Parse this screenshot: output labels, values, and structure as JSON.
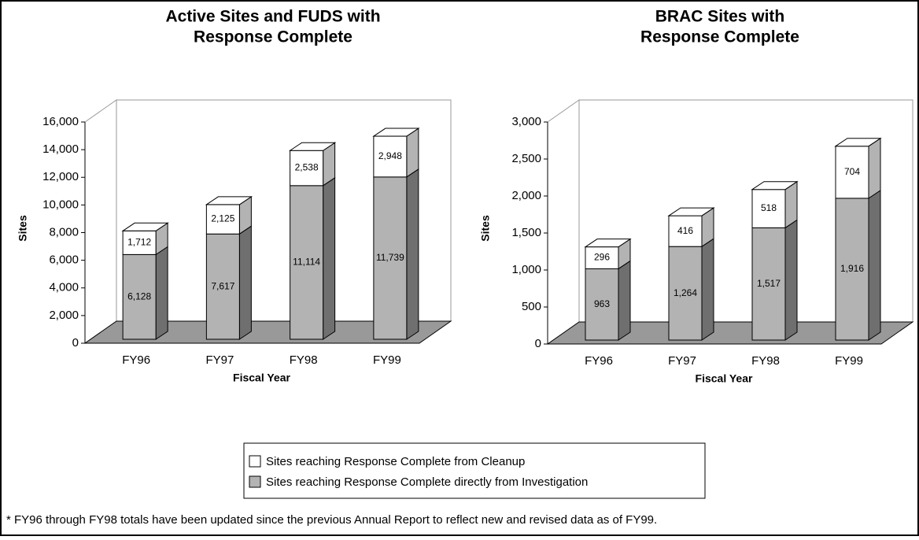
{
  "chart_data": [
    {
      "type": "bar3d_stacked",
      "title": [
        "Active Sites and FUDS with",
        "Response Complete"
      ],
      "y_label": "Sites",
      "x_label": "Fiscal Year",
      "categories": [
        "FY96",
        "FY97",
        "FY98",
        "FY99"
      ],
      "series": [
        {
          "name": "Sites reaching Response Complete directly from Investigation",
          "color": "#b3b3b3",
          "values": [
            6128,
            7617,
            11114,
            11739
          ],
          "value_labels": [
            "6,128",
            "7,617",
            "11,114",
            "11,739"
          ]
        },
        {
          "name": "Sites reaching Response Complete from Cleanup",
          "color": "#ffffff",
          "values": [
            1712,
            2125,
            2538,
            2948
          ],
          "value_labels": [
            "1,712",
            "2,125",
            "2,538",
            "2,948"
          ]
        }
      ],
      "ylim": [
        0,
        16000
      ],
      "yticks": [
        {
          "value": 0,
          "label": "0"
        },
        {
          "value": 2000,
          "label": "2,000"
        },
        {
          "value": 4000,
          "label": "4,000"
        },
        {
          "value": 6000,
          "label": "6,000"
        },
        {
          "value": 8000,
          "label": "8,000"
        },
        {
          "value": 10000,
          "label": "10,000"
        },
        {
          "value": 12000,
          "label": "12,000"
        },
        {
          "value": 14000,
          "label": "14,000"
        },
        {
          "value": 16000,
          "label": "16,000"
        }
      ]
    },
    {
      "type": "bar3d_stacked",
      "title": [
        "BRAC Sites with",
        "Response Complete"
      ],
      "y_label": "Sites",
      "x_label": "Fiscal Year",
      "categories": [
        "FY96",
        "FY97",
        "FY98",
        "FY99"
      ],
      "series": [
        {
          "color": "#b3b3b3",
          "values": [
            963,
            1264,
            1517,
            1916
          ],
          "value_labels": [
            "963",
            "1,264",
            "1,517",
            "1,916"
          ]
        },
        {
          "color": "#ffffff",
          "values": [
            296,
            416,
            518,
            704
          ]
        }
      ],
      "ylim": [
        0,
        3000
      ],
      "yticks": [
        0,
        500,
        {
          "value": 1000,
          "label": "1,000"
        },
        {
          "value": 1500,
          "label": "1,500"
        },
        {
          "value": 2000,
          "label": "2,000"
        },
        {
          "value": 2500,
          "label": "2,500"
        },
        {
          "value": 3000,
          "label": "3,000"
        }
      ]
    }
  ],
  "footnote": "* FY96 through FY98 totals have been updated since the previous Annual Report to reflect new and revised data as of FY99."
}
